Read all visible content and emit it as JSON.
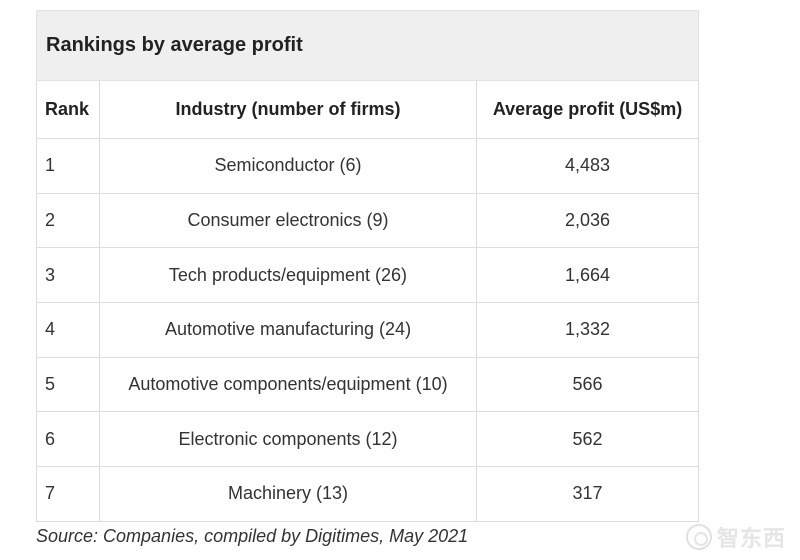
{
  "table": {
    "title": "Rankings by average profit",
    "headers": {
      "rank": "Rank",
      "industry": "Industry (number of firms)",
      "profit": "Average profit (US$m)"
    },
    "rows": [
      {
        "rank": "1",
        "industry": "Semiconductor (6)",
        "profit": "4,483"
      },
      {
        "rank": "2",
        "industry": "Consumer electronics (9)",
        "profit": "2,036"
      },
      {
        "rank": "3",
        "industry": "Tech products/equipment (26)",
        "profit": "1,664"
      },
      {
        "rank": "4",
        "industry": "Automotive manufacturing (24)",
        "profit": "1,332"
      },
      {
        "rank": "5",
        "industry": "Automotive components/equipment (10)",
        "profit": "566"
      },
      {
        "rank": "6",
        "industry": "Electronic components (12)",
        "profit": "562"
      },
      {
        "rank": "7",
        "industry": "Machinery (13)",
        "profit": "317"
      }
    ]
  },
  "source": "Source: Companies, compiled by Digitimes, May 2021",
  "watermark": {
    "text": "智东西",
    "icon": "watermark-logo-icon"
  }
}
